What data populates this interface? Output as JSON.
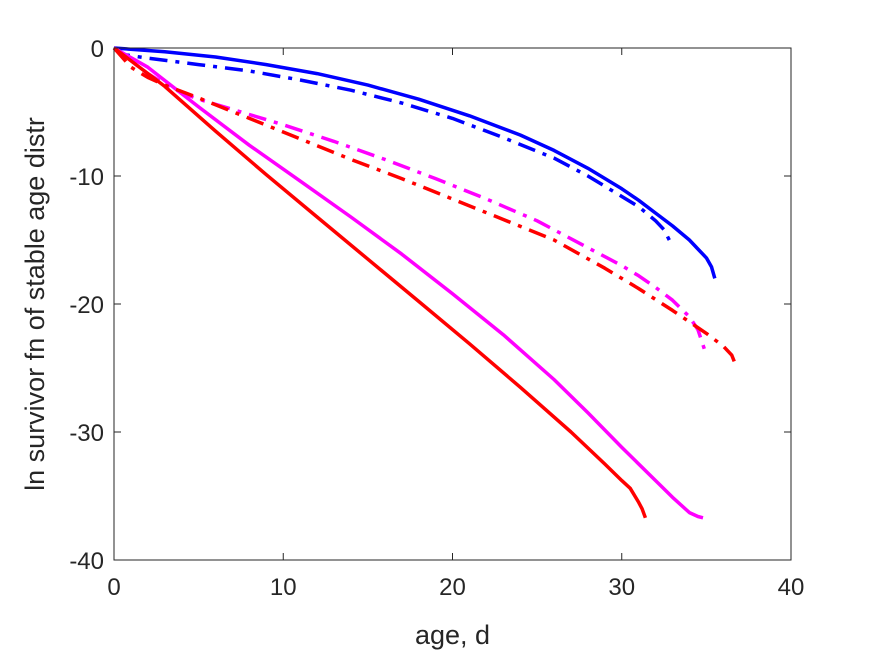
{
  "chart_data": {
    "type": "line",
    "title": "",
    "xlabel": "age, d",
    "ylabel": "ln survivor fn of stable age distr",
    "xlim": [
      0,
      40
    ],
    "ylim": [
      -40,
      0
    ],
    "xticks": [
      0,
      10,
      20,
      30,
      40
    ],
    "yticks": [
      0,
      -10,
      -20,
      -30,
      -40
    ],
    "grid": false,
    "legend": "none",
    "colors": {
      "blue": "#0000ff",
      "magenta": "#ff00ff",
      "red": "#ff0000",
      "axis": "#262626"
    },
    "series": [
      {
        "color": "blue",
        "style": "solid",
        "x": [
          0,
          3,
          6,
          9,
          12,
          15,
          18,
          21,
          24,
          26,
          28,
          30,
          31,
          32,
          33,
          34,
          34.5,
          35,
          35.3,
          35.5
        ],
        "y": [
          0,
          -0.3,
          -0.7,
          -1.3,
          -2.0,
          -2.9,
          -4.0,
          -5.3,
          -6.8,
          -8.0,
          -9.4,
          -11.0,
          -11.9,
          -12.9,
          -13.9,
          -15.0,
          -15.7,
          -16.4,
          -17.1,
          -18.0
        ]
      },
      {
        "color": "blue",
        "style": "dashdot",
        "x": [
          0,
          0.5,
          2,
          5,
          8,
          11,
          14,
          17,
          20,
          23,
          26,
          28,
          30,
          31,
          32,
          32.5,
          33
        ],
        "y": [
          0,
          -0.5,
          -0.8,
          -1.3,
          -1.8,
          -2.5,
          -3.3,
          -4.3,
          -5.5,
          -7.0,
          -8.6,
          -10.0,
          -11.6,
          -12.4,
          -13.5,
          -14.2,
          -15.5
        ]
      },
      {
        "color": "magenta",
        "style": "solid",
        "x": [
          0,
          2,
          5,
          8,
          11,
          14,
          17,
          20,
          23,
          26,
          28,
          30,
          32,
          33,
          34,
          34.5,
          34.8
        ],
        "y": [
          0,
          -1.5,
          -4.6,
          -7.6,
          -10.4,
          -13.2,
          -16.1,
          -19.2,
          -22.4,
          -25.9,
          -28.5,
          -31.2,
          -33.8,
          -35.1,
          -36.3,
          -36.6,
          -36.7
        ]
      },
      {
        "color": "magenta",
        "style": "dashdot",
        "x": [
          0,
          1,
          2,
          3,
          4,
          5,
          7,
          10,
          13,
          16,
          19,
          22,
          25,
          28,
          30,
          31,
          32,
          33,
          34,
          34.5,
          35
        ],
        "y": [
          0,
          -1.0,
          -2.0,
          -2.8,
          -3.5,
          -4.0,
          -4.8,
          -6.0,
          -7.3,
          -8.7,
          -10.2,
          -11.8,
          -13.5,
          -15.6,
          -17.0,
          -17.8,
          -18.7,
          -19.7,
          -21.0,
          -22.0,
          -24.0
        ]
      },
      {
        "color": "red",
        "style": "solid",
        "x": [
          0,
          3,
          6,
          9,
          12,
          15,
          18,
          21,
          24,
          27,
          29,
          30,
          30.5,
          31,
          31.2,
          31.4
        ],
        "y": [
          0,
          -3.0,
          -6.5,
          -9.9,
          -13.2,
          -16.5,
          -19.8,
          -23.1,
          -26.5,
          -30.0,
          -32.5,
          -33.8,
          -34.4,
          -35.5,
          -36.0,
          -36.7
        ]
      },
      {
        "color": "red",
        "style": "dashdot",
        "x": [
          0,
          1,
          2,
          3,
          5,
          8,
          11,
          14,
          17,
          20,
          23,
          26,
          29,
          31,
          33,
          34,
          35,
          36,
          36.5,
          36.8
        ],
        "y": [
          0,
          -1.5,
          -2.3,
          -2.9,
          -3.9,
          -5.5,
          -7.1,
          -8.7,
          -10.2,
          -11.8,
          -13.4,
          -15.0,
          -17.2,
          -18.8,
          -20.5,
          -21.4,
          -22.3,
          -23.3,
          -24.0,
          -25.0
        ]
      }
    ]
  }
}
